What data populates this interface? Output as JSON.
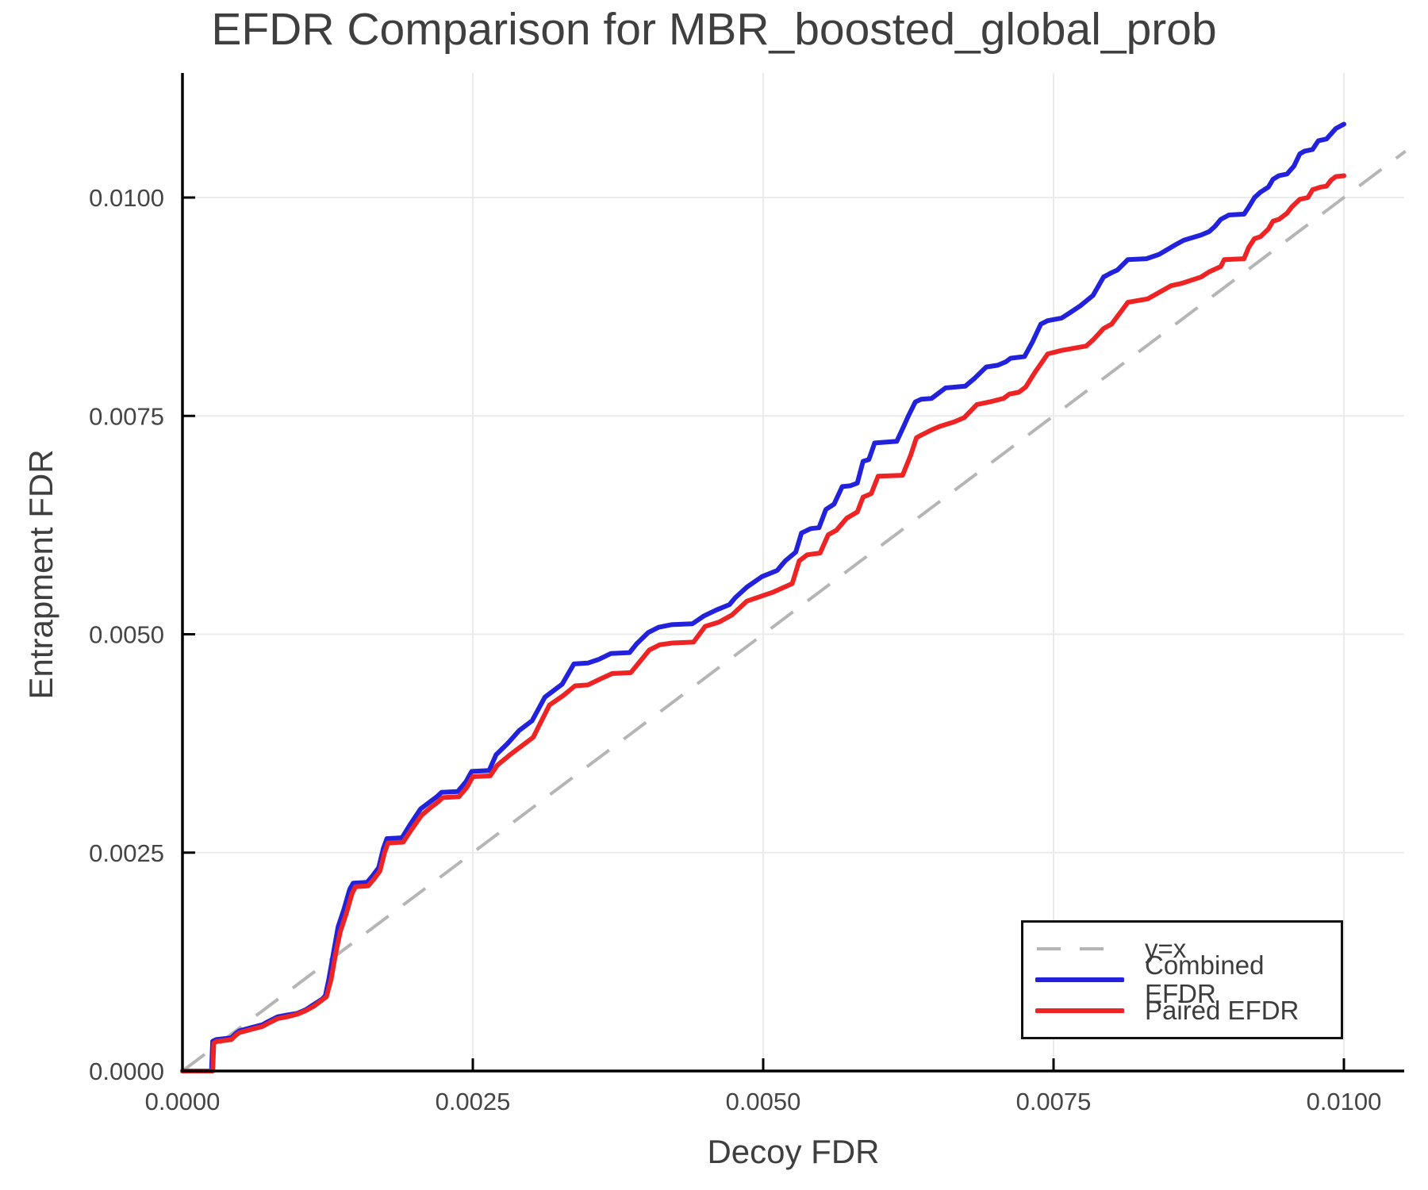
{
  "chart_data": {
    "type": "line",
    "title": "EFDR Comparison for MBR_boosted_global_prob",
    "xlabel": "Decoy FDR",
    "ylabel": "Entrapment FDR",
    "x_tick_labels": [
      "0.0000",
      "0.0025",
      "0.0050",
      "0.0075",
      "0.0100"
    ],
    "y_tick_labels": [
      "0.0000",
      "0.0025",
      "0.0050",
      "0.0075",
      "0.0100"
    ],
    "tick_values_units": [
      0,
      25,
      50,
      75,
      100
    ],
    "unit_scale": 0.0001,
    "xlim": [
      0.0,
      0.01053
    ],
    "ylim": [
      0.0,
      0.011462
    ],
    "grid": true,
    "colors": {
      "grid": "#ebebeb",
      "spine": "#000000",
      "diagonal": "#b5b5b5",
      "combined": "#2222dd",
      "paired": "#ee2424",
      "text": "#3f3f3f"
    },
    "legend_labels": [
      "y=x",
      "Combined EFDR",
      "Paired EFDR"
    ],
    "legend_position": "bottom-right",
    "series": [
      {
        "name": "y=x",
        "style": "dashed",
        "color": "#b5b5b5",
        "width": 4,
        "points": [
          [
            0,
            0
          ],
          [
            105.3,
            105.3
          ]
        ]
      },
      {
        "name": "Combined EFDR",
        "style": "solid",
        "color": "#2222dd",
        "width": 6,
        "points": [
          [
            0,
            0
          ],
          [
            2.5,
            0
          ],
          [
            2.6,
            3.4
          ],
          [
            2.9,
            3.6
          ],
          [
            4.2,
            3.8
          ],
          [
            4.6,
            4.3
          ],
          [
            4.9,
            4.6
          ],
          [
            6,
            5
          ],
          [
            6.9,
            5.3
          ],
          [
            7.3,
            5.6
          ],
          [
            8.2,
            6.2
          ],
          [
            9,
            6.4
          ],
          [
            9.9,
            6.6
          ],
          [
            10.6,
            7
          ],
          [
            11.3,
            7.6
          ],
          [
            12,
            8.2
          ],
          [
            12.3,
            8.6
          ],
          [
            12.6,
            10.5
          ],
          [
            13,
            13.5
          ],
          [
            13.4,
            16.5
          ],
          [
            13.9,
            18.5
          ],
          [
            14.4,
            20.8
          ],
          [
            14.7,
            21.5
          ],
          [
            15.9,
            21.6
          ],
          [
            16.4,
            22.4
          ],
          [
            16.9,
            23.3
          ],
          [
            17.3,
            25.5
          ],
          [
            17.6,
            26.6
          ],
          [
            18.9,
            26.7
          ],
          [
            19.6,
            28.2
          ],
          [
            20.5,
            30
          ],
          [
            21.3,
            30.8
          ],
          [
            21.9,
            31.4
          ],
          [
            22.3,
            31.9
          ],
          [
            23.7,
            32
          ],
          [
            24.4,
            33.1
          ],
          [
            24.9,
            34.3
          ],
          [
            26.4,
            34.4
          ],
          [
            27,
            36.2
          ],
          [
            28,
            37.5
          ],
          [
            29,
            39
          ],
          [
            30.1,
            40.1
          ],
          [
            31.2,
            42.8
          ],
          [
            32.7,
            44.3
          ],
          [
            33.7,
            46.6
          ],
          [
            34.9,
            46.7
          ],
          [
            35.8,
            47.1
          ],
          [
            36.9,
            47.8
          ],
          [
            38.5,
            47.9
          ],
          [
            39.1,
            48.9
          ],
          [
            40.1,
            50.2
          ],
          [
            41,
            50.8
          ],
          [
            42.1,
            51.1
          ],
          [
            43.9,
            51.2
          ],
          [
            44.9,
            52.1
          ],
          [
            46,
            52.8
          ],
          [
            47.1,
            53.4
          ],
          [
            47.6,
            54.2
          ],
          [
            48.6,
            55.4
          ],
          [
            49.9,
            56.6
          ],
          [
            51.2,
            57.3
          ],
          [
            51.9,
            58.4
          ],
          [
            52.8,
            59.4
          ],
          [
            53.3,
            61.6
          ],
          [
            54.1,
            62.1
          ],
          [
            54.8,
            62.2
          ],
          [
            55.4,
            64.3
          ],
          [
            56.1,
            64.9
          ],
          [
            56.8,
            66.9
          ],
          [
            57.5,
            67
          ],
          [
            58.1,
            67.3
          ],
          [
            58.6,
            69.8
          ],
          [
            59.1,
            70
          ],
          [
            59.6,
            71.9
          ],
          [
            61.5,
            72.1
          ],
          [
            62.1,
            73.8
          ],
          [
            62.5,
            75
          ],
          [
            63.1,
            76.6
          ],
          [
            63.6,
            76.9
          ],
          [
            64.5,
            77
          ],
          [
            65,
            77.5
          ],
          [
            65.7,
            78.2
          ],
          [
            67.4,
            78.4
          ],
          [
            68.2,
            79.3
          ],
          [
            69.2,
            80.6
          ],
          [
            70.2,
            80.8
          ],
          [
            70.9,
            81.2
          ],
          [
            71.3,
            81.6
          ],
          [
            72.5,
            81.8
          ],
          [
            73.2,
            83.5
          ],
          [
            73.9,
            85.5
          ],
          [
            74.5,
            85.9
          ],
          [
            75.7,
            86.2
          ],
          [
            76.4,
            86.8
          ],
          [
            77.3,
            87.6
          ],
          [
            78.4,
            88.8
          ],
          [
            79.3,
            90.9
          ],
          [
            80,
            91.4
          ],
          [
            80.5,
            91.7
          ],
          [
            81.4,
            92.9
          ],
          [
            83,
            93
          ],
          [
            84.1,
            93.5
          ],
          [
            85.5,
            94.6
          ],
          [
            86.2,
            95.1
          ],
          [
            87.7,
            95.7
          ],
          [
            88.4,
            96.1
          ],
          [
            88.9,
            96.7
          ],
          [
            89.4,
            97.5
          ],
          [
            90.1,
            98
          ],
          [
            91.4,
            98.1
          ],
          [
            91.8,
            98.9
          ],
          [
            92.3,
            100
          ],
          [
            92.8,
            100.6
          ],
          [
            93.5,
            101.2
          ],
          [
            93.9,
            102.1
          ],
          [
            94.4,
            102.5
          ],
          [
            95.1,
            102.7
          ],
          [
            95.7,
            103.6
          ],
          [
            96.2,
            105
          ],
          [
            96.6,
            105.3
          ],
          [
            97.3,
            105.5
          ],
          [
            97.8,
            106.5
          ],
          [
            98.5,
            106.7
          ],
          [
            98.9,
            107.3
          ],
          [
            99.3,
            107.9
          ],
          [
            100,
            108.4
          ]
        ]
      },
      {
        "name": "Paired EFDR",
        "style": "solid",
        "color": "#ee2424",
        "width": 6,
        "points": [
          [
            0,
            0
          ],
          [
            2.6,
            0
          ],
          [
            2.7,
            3.2
          ],
          [
            3,
            3.4
          ],
          [
            4.2,
            3.6
          ],
          [
            4.6,
            4.1
          ],
          [
            4.9,
            4.4
          ],
          [
            6,
            4.8
          ],
          [
            6.9,
            5.1
          ],
          [
            7.3,
            5.4
          ],
          [
            8.2,
            6
          ],
          [
            9,
            6.2
          ],
          [
            9.9,
            6.5
          ],
          [
            10.6,
            6.9
          ],
          [
            11.3,
            7.4
          ],
          [
            12,
            8.1
          ],
          [
            12.4,
            8.5
          ],
          [
            12.8,
            10.5
          ],
          [
            13.2,
            13.5
          ],
          [
            13.6,
            16
          ],
          [
            14.1,
            18
          ],
          [
            14.6,
            20.3
          ],
          [
            14.9,
            21.1
          ],
          [
            16,
            21.2
          ],
          [
            16.5,
            22
          ],
          [
            17,
            22.9
          ],
          [
            17.4,
            25
          ],
          [
            17.7,
            26.1
          ],
          [
            19,
            26.2
          ],
          [
            19.7,
            27.6
          ],
          [
            20.6,
            29.3
          ],
          [
            21.4,
            30.2
          ],
          [
            22,
            30.8
          ],
          [
            22.4,
            31.3
          ],
          [
            23.8,
            31.4
          ],
          [
            24.5,
            32.5
          ],
          [
            25,
            33.7
          ],
          [
            26.5,
            33.8
          ],
          [
            27.1,
            35
          ],
          [
            28.2,
            36.2
          ],
          [
            29.2,
            37.2
          ],
          [
            30.2,
            38.2
          ],
          [
            31.6,
            41.9
          ],
          [
            32.8,
            43
          ],
          [
            33.8,
            44.1
          ],
          [
            34.9,
            44.2
          ],
          [
            36,
            44.9
          ],
          [
            37,
            45.5
          ],
          [
            38.6,
            45.6
          ],
          [
            40.2,
            48.2
          ],
          [
            41.1,
            48.8
          ],
          [
            42.2,
            49
          ],
          [
            44,
            49.1
          ],
          [
            45,
            50.9
          ],
          [
            46.2,
            51.4
          ],
          [
            47.3,
            52.2
          ],
          [
            48.6,
            53.8
          ],
          [
            50.8,
            54.8
          ],
          [
            52.5,
            55.8
          ],
          [
            53.1,
            58.4
          ],
          [
            53.8,
            59.1
          ],
          [
            54.9,
            59.3
          ],
          [
            55.6,
            61.4
          ],
          [
            56.3,
            61.9
          ],
          [
            57.2,
            63.3
          ],
          [
            58.1,
            64
          ],
          [
            58.6,
            65.7
          ],
          [
            59.3,
            66.1
          ],
          [
            59.9,
            68.1
          ],
          [
            62,
            68.2
          ],
          [
            62.7,
            70.5
          ],
          [
            63.2,
            72.5
          ],
          [
            63.6,
            72.8
          ],
          [
            64.5,
            73.4
          ],
          [
            65.2,
            73.8
          ],
          [
            66.4,
            74.3
          ],
          [
            67.3,
            74.8
          ],
          [
            68.4,
            76.3
          ],
          [
            69.5,
            76.6
          ],
          [
            70.7,
            77
          ],
          [
            71.2,
            77.5
          ],
          [
            72,
            77.7
          ],
          [
            72.6,
            78.3
          ],
          [
            73.4,
            80
          ],
          [
            74.5,
            82.1
          ],
          [
            75.7,
            82.5
          ],
          [
            77.8,
            83
          ],
          [
            78.4,
            83.7
          ],
          [
            79.3,
            85
          ],
          [
            80,
            85.5
          ],
          [
            81.4,
            88
          ],
          [
            83.1,
            88.4
          ],
          [
            85.1,
            89.9
          ],
          [
            86.1,
            90.2
          ],
          [
            87.7,
            90.9
          ],
          [
            88.4,
            91.5
          ],
          [
            89.4,
            92.1
          ],
          [
            89.7,
            92.9
          ],
          [
            91.4,
            93
          ],
          [
            91.8,
            94.3
          ],
          [
            92.3,
            95.3
          ],
          [
            92.8,
            95.5
          ],
          [
            93.5,
            96.4
          ],
          [
            93.9,
            97.3
          ],
          [
            94.4,
            97.5
          ],
          [
            95.1,
            98.2
          ],
          [
            95.5,
            98.9
          ],
          [
            96.2,
            99.8
          ],
          [
            96.9,
            100
          ],
          [
            97.3,
            100.9
          ],
          [
            98,
            101.2
          ],
          [
            98.5,
            101.3
          ],
          [
            98.9,
            102
          ],
          [
            99.3,
            102.4
          ],
          [
            100,
            102.5
          ]
        ]
      }
    ]
  }
}
